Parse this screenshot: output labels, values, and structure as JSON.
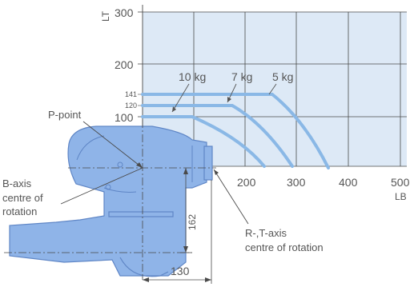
{
  "axes": {
    "y_axis_label": "LT",
    "x_axis_label": "LB",
    "y_ticks": [
      "300",
      "200",
      "100"
    ],
    "y_small_ticks": [
      "141",
      "120"
    ],
    "x_ticks": [
      "200",
      "300",
      "400",
      "500"
    ]
  },
  "payload_labels": [
    "10 kg",
    "7 kg",
    "5 kg"
  ],
  "annotations": {
    "p_point": "P-point",
    "b_axis_line1": "B-axis",
    "b_axis_line2": "centre of",
    "b_axis_line3": "rotation",
    "rt_axis_line1": "R-,T-axis",
    "rt_axis_line2": "centre of rotation"
  },
  "dimensions": {
    "vertical": "162",
    "horizontal": "130"
  },
  "chart_data": {
    "type": "line",
    "xlabel": "LB",
    "ylabel": "LT",
    "xlim": [
      100,
      500
    ],
    "ylim": [
      0,
      300
    ],
    "x_ticks": [
      200,
      300,
      400,
      500
    ],
    "y_ticks": [
      100,
      200,
      300
    ],
    "grid": true,
    "series": [
      {
        "name": "10 kg",
        "x": [
          100,
          160,
          210,
          255,
          292,
          305
        ],
        "y": [
          100,
          100,
          85,
          60,
          20,
          0
        ]
      },
      {
        "name": "7 kg",
        "x": [
          100,
          190,
          240,
          290,
          325,
          345
        ],
        "y": [
          120,
          120,
          100,
          70,
          30,
          0
        ]
      },
      {
        "name": "5 kg",
        "x": [
          100,
          255,
          295,
          335,
          360,
          372
        ],
        "y": [
          141,
          141,
          115,
          75,
          30,
          0
        ]
      }
    ]
  },
  "colors": {
    "grid_fill": "#dde9f6",
    "grid_line": "#4a4a4a",
    "curve": "#8ab8e6",
    "robot_fill": "#8fb4e8",
    "robot_stroke": "#5f86c6",
    "text": "#555555"
  }
}
